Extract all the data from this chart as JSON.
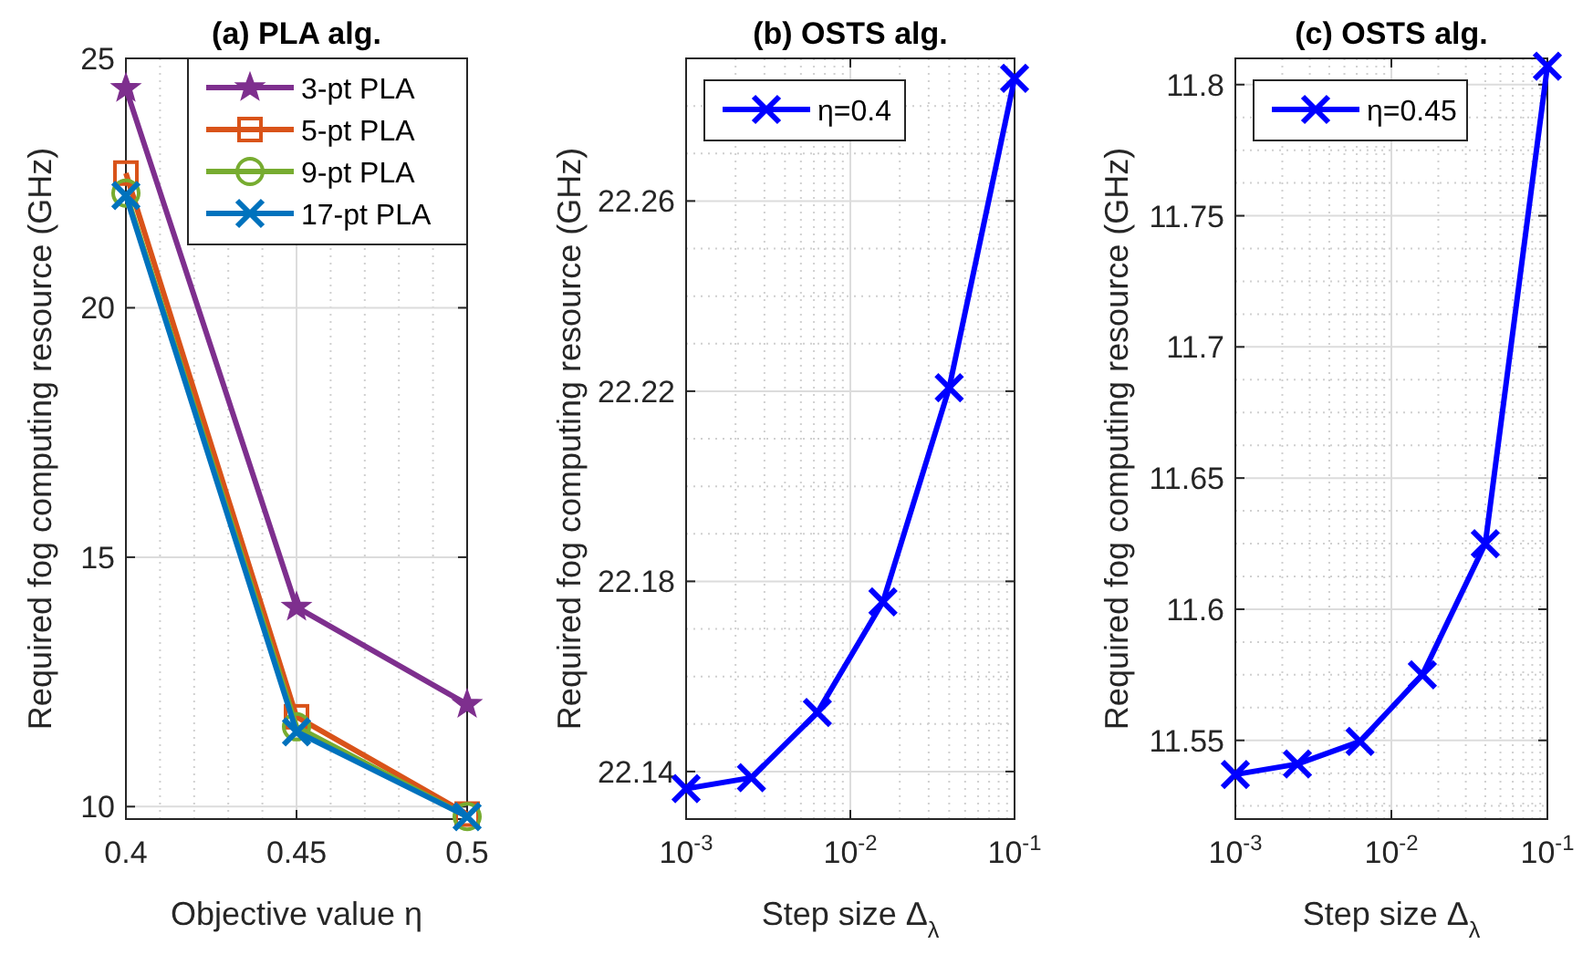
{
  "chart_data": [
    {
      "type": "line",
      "title": "(a) PLA alg.",
      "xlabel": "Objective value η",
      "ylabel": "Required fog computing resource (GHz)",
      "x": [
        0.4,
        0.45,
        0.5
      ],
      "xlim": [
        0.4,
        0.5
      ],
      "xticks": [
        0.4,
        0.45,
        0.5
      ],
      "ylim": [
        9.75,
        25
      ],
      "yticks": [
        10,
        15,
        20,
        25
      ],
      "grid": true,
      "legend": "top right",
      "series": [
        {
          "name": "3-pt PLA",
          "color": "#7e2f8e",
          "marker": "star",
          "values": [
            24.4,
            14.0,
            12.05
          ]
        },
        {
          "name": "5-pt PLA",
          "color": "#d95319",
          "marker": "square",
          "values": [
            22.7,
            11.8,
            9.85
          ]
        },
        {
          "name": "9-pt PLA",
          "color": "#77ac30",
          "marker": "circle",
          "values": [
            22.3,
            11.6,
            9.8
          ]
        },
        {
          "name": "17-pt PLA",
          "color": "#0072bd",
          "marker": "cross",
          "values": [
            22.25,
            11.5,
            9.8
          ]
        }
      ]
    },
    {
      "type": "line",
      "title": "(b) OSTS alg.",
      "xlabel": "Step size Δ$_{λ}$",
      "ylabel": "Required fog computing resource (GHz)",
      "log": "x",
      "x": [
        0.001,
        0.0025,
        0.0063,
        0.0158,
        0.04,
        0.1
      ],
      "xlim": [
        0.001,
        0.1
      ],
      "xticks": [
        {
          "value": 0.001,
          "label": "10$^{-3}$"
        },
        {
          "value": 0.01,
          "label": "10$^{-2}$"
        },
        {
          "value": 0.1,
          "label": "10$^{-1}$"
        }
      ],
      "ylim": [
        22.13,
        22.29
      ],
      "yticks": [
        22.14,
        22.18,
        22.22,
        22.26
      ],
      "grid": true,
      "legend": "top left",
      "marker": "cross",
      "series": [
        {
          "name": "η=0.4",
          "color": "#0000ff",
          "values": [
            22.1364,
            22.1387,
            22.1524,
            22.1757,
            22.2207,
            22.2858
          ]
        }
      ]
    },
    {
      "type": "line",
      "title": "(c) OSTS alg.",
      "xlabel": "Step size Δ$_{λ}$",
      "ylabel": "Required fog computing resource (GHz)",
      "log": "x",
      "x": [
        0.001,
        0.0025,
        0.0063,
        0.0158,
        0.04,
        0.1
      ],
      "xlim": [
        0.001,
        0.1
      ],
      "xticks": [
        {
          "value": 0.001,
          "label": "10$^{-3}$"
        },
        {
          "value": 0.01,
          "label": "10$^{-2}$"
        },
        {
          "value": 0.1,
          "label": "10$^{-1}$"
        }
      ],
      "ylim": [
        11.52,
        11.81
      ],
      "yticks": [
        11.55,
        11.6,
        11.65,
        11.7,
        11.75,
        11.8
      ],
      "grid": true,
      "legend": "top left",
      "marker": "cross",
      "series": [
        {
          "name": "η=0.45",
          "color": "#0000ff",
          "values": [
            11.537,
            11.541,
            11.5496,
            11.575,
            11.625,
            11.807
          ]
        }
      ]
    }
  ]
}
